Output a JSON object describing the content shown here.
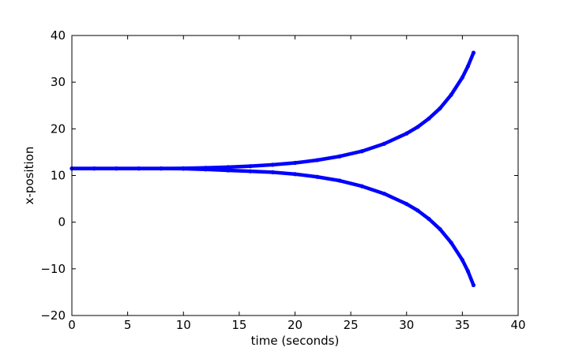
{
  "chart_data": {
    "type": "scatter",
    "title": "",
    "xlabel": "time (seconds)",
    "ylabel": "x-position",
    "xlim": [
      0,
      40
    ],
    "ylim": [
      -20,
      40
    ],
    "x_ticks": [
      0,
      5,
      10,
      15,
      20,
      25,
      30,
      35,
      40
    ],
    "y_ticks": [
      -20,
      -10,
      0,
      10,
      20,
      30,
      40
    ],
    "x_tick_labels": [
      "0",
      "5",
      "10",
      "15",
      "20",
      "25",
      "30",
      "35",
      "40"
    ],
    "y_tick_labels": [
      "−20",
      "−10",
      "0",
      "10",
      "20",
      "30",
      "40"
    ],
    "grid": false,
    "legend": "none",
    "marker_color": "#0000ff",
    "series": [
      {
        "points": [
          [
            0,
            11.5
          ],
          [
            2,
            11.5
          ],
          [
            4,
            11.5
          ],
          [
            6,
            11.5
          ],
          [
            8,
            11.5
          ],
          [
            10,
            11.55
          ],
          [
            12,
            11.65
          ],
          [
            14,
            11.8
          ],
          [
            16,
            12.0
          ],
          [
            18,
            12.3
          ],
          [
            20,
            12.7
          ],
          [
            22,
            13.3
          ],
          [
            24,
            14.1
          ],
          [
            26,
            15.2
          ],
          [
            28,
            16.8
          ],
          [
            30,
            19.0
          ],
          [
            31,
            20.4
          ],
          [
            32,
            22.2
          ],
          [
            33,
            24.4
          ],
          [
            34,
            27.3
          ],
          [
            35,
            31.0
          ],
          [
            35.5,
            33.4
          ],
          [
            36,
            36.3
          ]
        ]
      },
      {
        "points": [
          [
            0,
            11.5
          ],
          [
            2,
            11.5
          ],
          [
            4,
            11.5
          ],
          [
            6,
            11.5
          ],
          [
            8,
            11.5
          ],
          [
            10,
            11.45
          ],
          [
            12,
            11.3
          ],
          [
            14,
            11.1
          ],
          [
            16,
            10.9
          ],
          [
            18,
            10.7
          ],
          [
            20,
            10.3
          ],
          [
            22,
            9.7
          ],
          [
            24,
            8.9
          ],
          [
            26,
            7.7
          ],
          [
            28,
            6.1
          ],
          [
            30,
            3.9
          ],
          [
            31,
            2.5
          ],
          [
            32,
            0.7
          ],
          [
            33,
            -1.5
          ],
          [
            34,
            -4.4
          ],
          [
            35,
            -8.1
          ],
          [
            35.5,
            -10.5
          ],
          [
            36,
            -13.5
          ]
        ]
      }
    ]
  }
}
